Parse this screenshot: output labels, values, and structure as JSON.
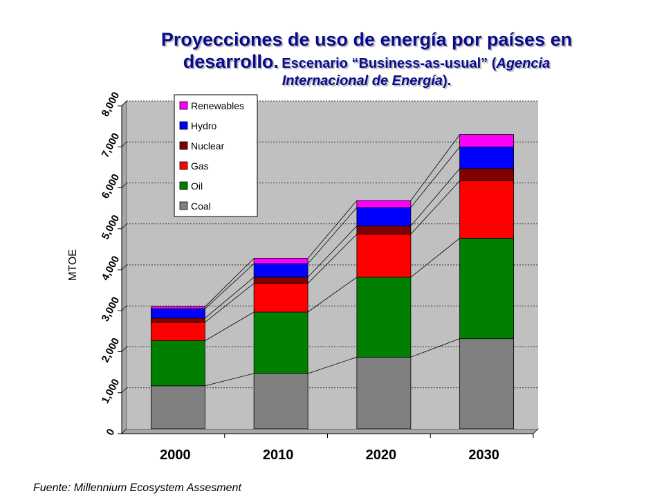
{
  "title": {
    "line1": "Proyecciones de uso de energía por países en",
    "line2_main": "desarrollo.",
    "line2_rest": "Escenario “Business-as-usual” (",
    "line2_italic": "Agencia",
    "line3_italic": "Internacional de Energía",
    "line3_end": ")."
  },
  "source": "Fuente: Millennium Ecosystem Assesment",
  "chart_data": {
    "type": "bar",
    "stacked": true,
    "categories": [
      "2000",
      "2010",
      "2020",
      "2030"
    ],
    "ylabel": "MTOE",
    "xlabel": "",
    "ylim": [
      0,
      8000
    ],
    "yticks": [
      0,
      1000,
      2000,
      3000,
      4000,
      5000,
      6000,
      7000,
      8000
    ],
    "ytick_labels": [
      "0",
      "1,000",
      "2,000",
      "3,000",
      "4,000",
      "5,000",
      "6,000",
      "7,000",
      "8,000"
    ],
    "grid": true,
    "legend_position": "top-left",
    "series": [
      {
        "name": "Coal",
        "color": "#808080",
        "values": [
          1050,
          1350,
          1750,
          2200
        ]
      },
      {
        "name": "Oil",
        "color": "#008000",
        "values": [
          1100,
          1500,
          1950,
          2450
        ]
      },
      {
        "name": "Gas",
        "color": "#ff0000",
        "values": [
          450,
          700,
          1050,
          1400
        ]
      },
      {
        "name": "Nuclear",
        "color": "#800000",
        "values": [
          100,
          150,
          200,
          300
        ]
      },
      {
        "name": "Hydro",
        "color": "#0000ff",
        "values": [
          230,
          330,
          450,
          530
        ]
      },
      {
        "name": "Renewables",
        "color": "#ff00ff",
        "values": [
          50,
          130,
          170,
          300
        ]
      }
    ]
  }
}
